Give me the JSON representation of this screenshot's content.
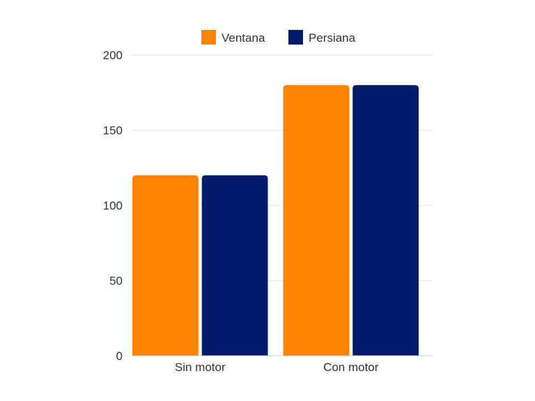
{
  "chart_data": {
    "type": "bar",
    "categories": [
      "Sin motor",
      "Con motor"
    ],
    "series": [
      {
        "name": "Ventana",
        "values": [
          120,
          180
        ],
        "color": "#FF8200"
      },
      {
        "name": "Persiana",
        "values": [
          120,
          180
        ],
        "color": "#001C6B"
      }
    ],
    "ylim": [
      0,
      200
    ],
    "yticks": [
      0,
      50,
      100,
      150,
      200
    ],
    "grid": true,
    "legend": "top-center"
  }
}
